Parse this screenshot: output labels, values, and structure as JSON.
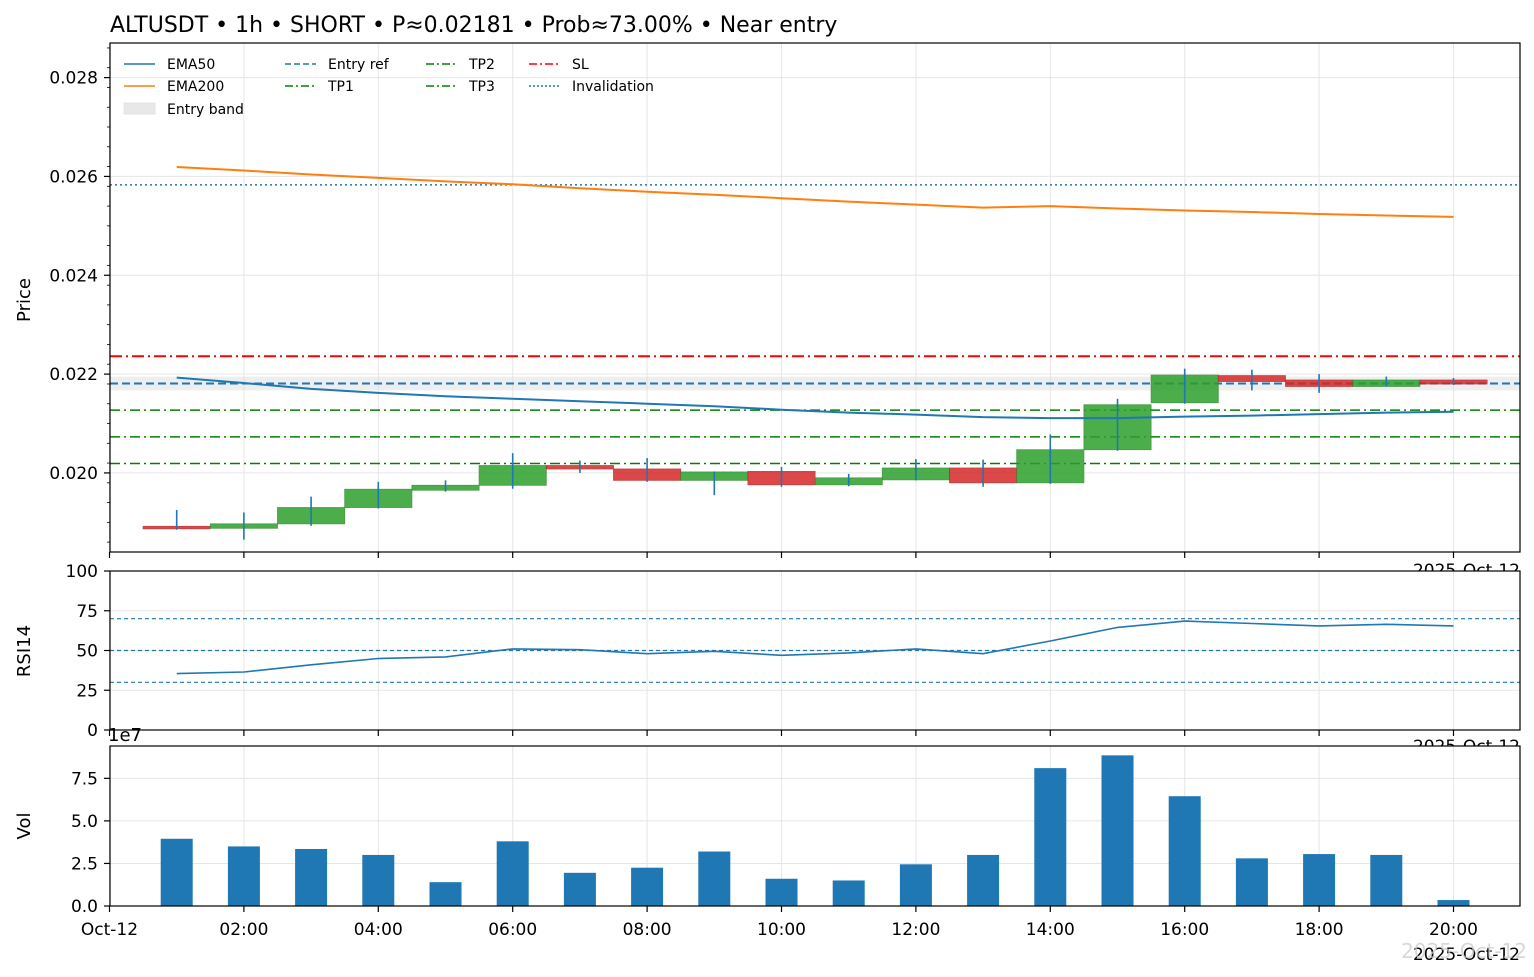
{
  "title": "ALTUSDT • 1h • SHORT • P≈0.02181 • Prob≈73.00% • Near entry",
  "colors": {
    "ema50": "#1f77b4",
    "ema200": "#ff7f0e",
    "entry": "#1f77b4",
    "tp": "#008000",
    "sl": "#ff0000",
    "invalidation": "#1f77b4",
    "up": "#2ca02c",
    "down": "#d62728",
    "wick": "#1f77b4",
    "volume": "#1f77b4",
    "rsi": "#1f77b4",
    "band": "#d9d9d9"
  },
  "watermark": "2025-Oct-12",
  "chart_data": [
    {
      "type": "candlestick",
      "ylabel": "Price",
      "ylim": [
        0.0184,
        0.0287
      ],
      "yticks": [
        "0.020",
        "0.022",
        "0.024",
        "0.026",
        "0.028"
      ],
      "ytick_values": [
        0.02,
        0.022,
        0.024,
        0.026,
        0.028
      ],
      "corner_label": "2025-Oct-12",
      "legend": [
        {
          "label": "EMA50",
          "style": "solid",
          "color": "#1f77b4"
        },
        {
          "label": "EMA200",
          "style": "solid",
          "color": "#ff7f0e"
        },
        {
          "label": "Entry band",
          "style": "band",
          "color": "#d9d9d9"
        },
        {
          "label": "Entry ref",
          "style": "dashed",
          "color": "#1f77b4"
        },
        {
          "label": "TP1",
          "style": "dashdot",
          "color": "#008000"
        },
        {
          "label": "TP2",
          "style": "dashdot",
          "color": "#008000"
        },
        {
          "label": "TP3",
          "style": "dashdot",
          "color": "#008000"
        },
        {
          "label": "SL",
          "style": "dashdot",
          "color": "#ff0000"
        },
        {
          "label": "Invalidation",
          "style": "dotted",
          "color": "#1f77b4"
        }
      ],
      "levels": {
        "entry": 0.02181,
        "entry_band": [
          0.02167,
          0.02195
        ],
        "tp1": 0.02127,
        "tp2": 0.02073,
        "tp3": 0.02019,
        "sl": 0.02236,
        "invalidation": 0.02583
      },
      "hours": [
        1,
        2,
        3,
        4,
        5,
        6,
        7,
        8,
        9,
        10,
        11,
        12,
        13,
        14,
        15,
        16,
        17,
        18,
        19,
        20
      ],
      "candles": [
        {
          "o": 0.01892,
          "h": 0.01925,
          "l": 0.01885,
          "c": 0.01888
        },
        {
          "o": 0.01888,
          "h": 0.0192,
          "l": 0.01865,
          "c": 0.01897
        },
        {
          "o": 0.01897,
          "h": 0.01952,
          "l": 0.01893,
          "c": 0.0193
        },
        {
          "o": 0.0193,
          "h": 0.01982,
          "l": 0.01928,
          "c": 0.01967
        },
        {
          "o": 0.01965,
          "h": 0.01985,
          "l": 0.01962,
          "c": 0.01975
        },
        {
          "o": 0.01975,
          "h": 0.0204,
          "l": 0.01968,
          "c": 0.02015
        },
        {
          "o": 0.02015,
          "h": 0.02025,
          "l": 0.02,
          "c": 0.02008
        },
        {
          "o": 0.02008,
          "h": 0.0203,
          "l": 0.01982,
          "c": 0.01985
        },
        {
          "o": 0.01985,
          "h": 0.02003,
          "l": 0.01955,
          "c": 0.02002
        },
        {
          "o": 0.02003,
          "h": 0.02012,
          "l": 0.01972,
          "c": 0.01976
        },
        {
          "o": 0.01976,
          "h": 0.01998,
          "l": 0.01973,
          "c": 0.0199
        },
        {
          "o": 0.01986,
          "h": 0.02028,
          "l": 0.01985,
          "c": 0.0201
        },
        {
          "o": 0.0201,
          "h": 0.02027,
          "l": 0.01972,
          "c": 0.0198
        },
        {
          "o": 0.0198,
          "h": 0.02078,
          "l": 0.01978,
          "c": 0.02047
        },
        {
          "o": 0.02047,
          "h": 0.0215,
          "l": 0.02045,
          "c": 0.02138
        },
        {
          "o": 0.02142,
          "h": 0.02211,
          "l": 0.0214,
          "c": 0.02198
        },
        {
          "o": 0.02197,
          "h": 0.02209,
          "l": 0.02167,
          "c": 0.02185
        },
        {
          "o": 0.02188,
          "h": 0.022,
          "l": 0.02162,
          "c": 0.02175
        },
        {
          "o": 0.02175,
          "h": 0.02195,
          "l": 0.02175,
          "c": 0.02188
        },
        {
          "o": 0.02188,
          "h": 0.02192,
          "l": 0.02178,
          "c": 0.0218
        }
      ],
      "ema50": [
        0.02193,
        0.02182,
        0.0217,
        0.02162,
        0.02155,
        0.0215,
        0.02145,
        0.0214,
        0.02135,
        0.02128,
        0.02122,
        0.02118,
        0.02113,
        0.02111,
        0.02111,
        0.02114,
        0.02116,
        0.02119,
        0.02122,
        0.02124
      ],
      "ema200": [
        0.02619,
        0.02612,
        0.02604,
        0.02597,
        0.0259,
        0.02584,
        0.02576,
        0.02569,
        0.02563,
        0.02556,
        0.02549,
        0.02543,
        0.02537,
        0.0254,
        0.02535,
        0.02531,
        0.02528,
        0.02524,
        0.02521,
        0.02518
      ]
    },
    {
      "type": "line",
      "ylabel": "RSI14",
      "ylim": [
        0,
        100
      ],
      "yticks": [
        "0",
        "25",
        "50",
        "75",
        "100"
      ],
      "ytick_values": [
        0,
        25,
        50,
        75,
        100
      ],
      "guide_lines": [
        30,
        50,
        70
      ],
      "corner_label": "2025-Oct-12",
      "hours": [
        1,
        2,
        3,
        4,
        5,
        6,
        7,
        8,
        9,
        10,
        11,
        12,
        13,
        14,
        15,
        16,
        17,
        18,
        19,
        20
      ],
      "values": [
        35.5,
        36.5,
        41,
        45,
        46,
        51,
        50.5,
        48,
        49.5,
        47,
        48.5,
        51,
        48,
        56,
        64.5,
        68.5,
        67,
        65.5,
        66.5,
        65.5
      ]
    },
    {
      "type": "bar",
      "ylabel": "Vol",
      "offset_text": "1e7",
      "ylim": [
        0,
        9.4
      ],
      "yticks": [
        "0.0",
        "2.5",
        "5.0",
        "7.5"
      ],
      "ytick_values": [
        0,
        2.5,
        5.0,
        7.5
      ],
      "hours": [
        1,
        2,
        3,
        4,
        5,
        6,
        7,
        8,
        9,
        10,
        11,
        12,
        13,
        14,
        15,
        16,
        17,
        18,
        19,
        20
      ],
      "values": [
        3.95,
        3.5,
        3.35,
        3.0,
        1.4,
        3.8,
        1.95,
        2.25,
        3.2,
        1.6,
        1.5,
        2.45,
        3.0,
        8.1,
        8.85,
        6.45,
        2.8,
        3.05,
        3.0,
        0.35
      ],
      "xtick_hours": [
        0,
        2,
        4,
        6,
        8,
        10,
        12,
        14,
        16,
        18,
        20
      ],
      "xticks": [
        "Oct-12",
        "02:00",
        "04:00",
        "06:00",
        "08:00",
        "10:00",
        "12:00",
        "14:00",
        "16:00",
        "18:00",
        "20:00"
      ],
      "corner_label": "2025-Oct-12"
    }
  ]
}
